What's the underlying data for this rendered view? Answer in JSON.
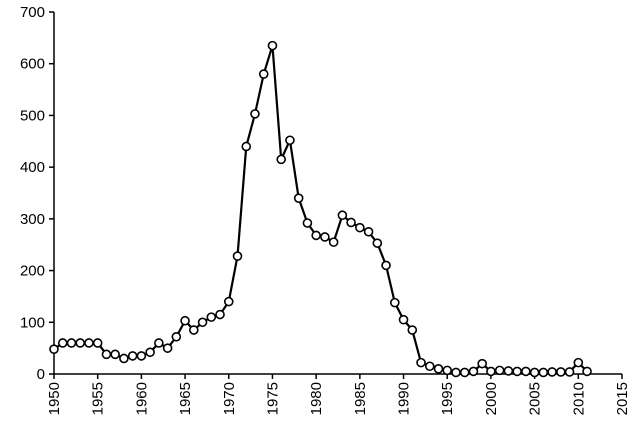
{
  "chart_data": {
    "type": "line",
    "x": [
      1950,
      1951,
      1952,
      1953,
      1954,
      1955,
      1956,
      1957,
      1958,
      1959,
      1960,
      1961,
      1962,
      1963,
      1964,
      1965,
      1966,
      1967,
      1968,
      1969,
      1970,
      1971,
      1972,
      1973,
      1974,
      1975,
      1976,
      1977,
      1978,
      1979,
      1980,
      1981,
      1982,
      1983,
      1984,
      1985,
      1986,
      1987,
      1988,
      1989,
      1990,
      1991,
      1992,
      1993,
      1994,
      1995,
      1996,
      1997,
      1998,
      1999,
      2000,
      2001,
      2002,
      2003,
      2004,
      2005,
      2006,
      2007,
      2008,
      2009,
      2010,
      2011
    ],
    "values": [
      48,
      60,
      60,
      60,
      60,
      60,
      38,
      38,
      30,
      35,
      35,
      42,
      60,
      50,
      72,
      103,
      85,
      100,
      110,
      115,
      140,
      228,
      440,
      503,
      580,
      635,
      415,
      452,
      340,
      292,
      268,
      265,
      255,
      307,
      293,
      283,
      275,
      253,
      210,
      138,
      105,
      85,
      22,
      15,
      10,
      7,
      3,
      3,
      5,
      20,
      5,
      7,
      6,
      5,
      5,
      3,
      3,
      4,
      4,
      4,
      22,
      5
    ],
    "color": "#000000",
    "xlim": [
      1950,
      2015
    ],
    "xticks": [
      1950,
      1955,
      1960,
      1965,
      1970,
      1975,
      1980,
      1985,
      1990,
      1995,
      2000,
      2005,
      2010,
      2015
    ],
    "ylim": [
      0,
      700
    ],
    "yticks": [
      0,
      100,
      200,
      300,
      400,
      500,
      600,
      700
    ],
    "grid": false
  }
}
